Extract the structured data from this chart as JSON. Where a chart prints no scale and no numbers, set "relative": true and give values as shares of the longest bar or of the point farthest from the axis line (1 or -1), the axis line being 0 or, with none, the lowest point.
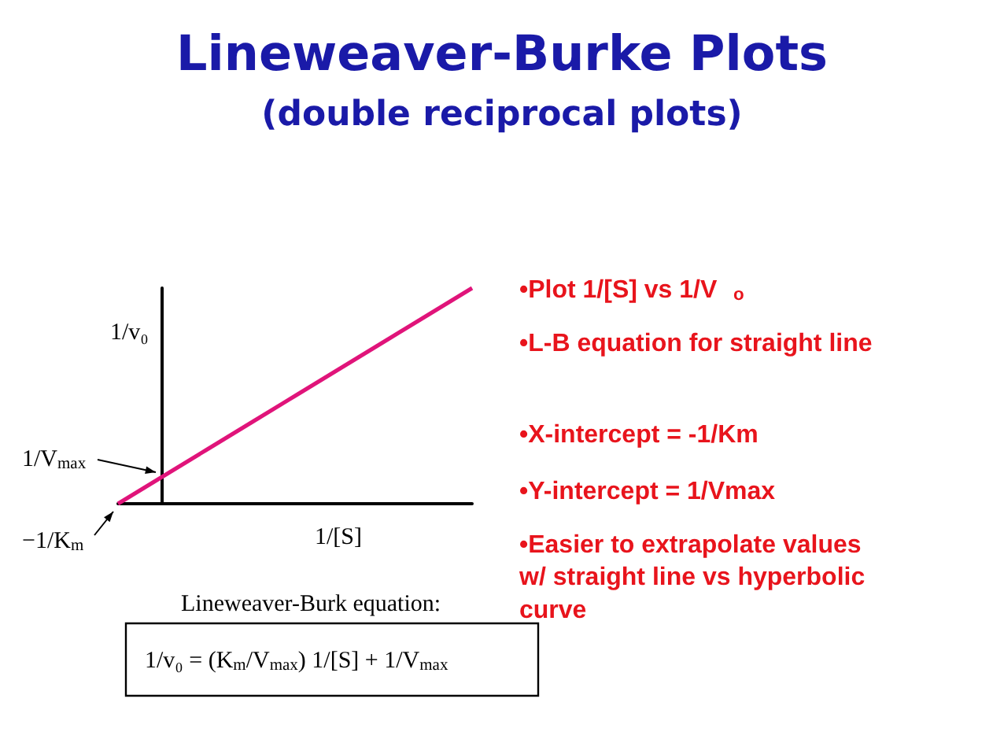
{
  "chart_data": {
    "type": "line",
    "relative": true,
    "title": "Lineweaver-Burke Plots",
    "subtitle": "(double reciprocal plots)",
    "xlabel": "1/[S]",
    "ylabel": "1/v₀",
    "categories": [
      null,
      null,
      null,
      null,
      null,
      null,
      null,
      null,
      null
    ],
    "series": [
      {
        "color": "#e0147a",
        "values": [
          0,
          0.125,
          0.25,
          0.375,
          0.5,
          0.625,
          0.75,
          0.875,
          1
        ]
      }
    ],
    "marker": "none",
    "grid": false,
    "annotations": [
      "1/V$_{max}$",
      "−1/K$_{m}$",
      "Lineweaver-Burk equation:",
      "1/v₀ = (K$_{m}$/V$_{max}$) 1/[S] + 1/V$_{max}$",
      "•Plot 1/[S] vs 1/V$_{o}$",
      "•L-B equation for straight line",
      "•X-intercept = -1/Km",
      "•Y-intercept = 1/Vmax",
      "•Easier to extrapolate values w/ straight line vs hyperbolic curve"
    ]
  }
}
